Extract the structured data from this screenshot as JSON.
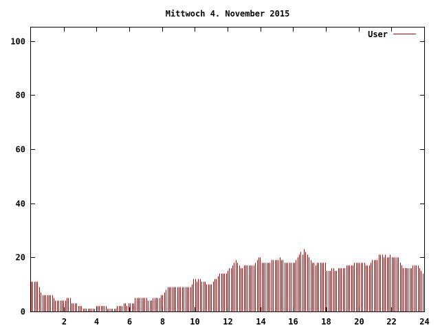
{
  "chart_data": {
    "type": "bar",
    "title": "Mittwoch 4. November 2015",
    "xlabel": "",
    "ylabel": "",
    "xlim": [
      0,
      24
    ],
    "ylim": [
      0,
      105
    ],
    "x_ticks": [
      2,
      4,
      6,
      8,
      10,
      12,
      14,
      16,
      18,
      20,
      22,
      24
    ],
    "y_ticks": [
      0,
      20,
      40,
      60,
      80,
      100
    ],
    "grid": false,
    "legend": "top-right",
    "series": [
      {
        "name": "User",
        "color": "#cc0000",
        "values": [
          11,
          11,
          11,
          11,
          11,
          9,
          7,
          6,
          6,
          6,
          6,
          6,
          6,
          6,
          5,
          4,
          4,
          4,
          4,
          4,
          4,
          4,
          5,
          5,
          5,
          3,
          3,
          3,
          3,
          2,
          2,
          2,
          1,
          1,
          1,
          1,
          1,
          1,
          1,
          1,
          2,
          2,
          2,
          2,
          2,
          2,
          2,
          1,
          1,
          1,
          1,
          1,
          1,
          2,
          2,
          2,
          2,
          3,
          3,
          2,
          3,
          3,
          3,
          3,
          5,
          5,
          5,
          5,
          5,
          5,
          5,
          5,
          4,
          4,
          4,
          5,
          5,
          5,
          5,
          5,
          6,
          6,
          7,
          8,
          9,
          9,
          9,
          9,
          9,
          9,
          9,
          9,
          9,
          9,
          9,
          9,
          9,
          9,
          9,
          10,
          12,
          12,
          11,
          12,
          12,
          11,
          11,
          11,
          10,
          10,
          10,
          10,
          11,
          12,
          12,
          13,
          14,
          14,
          14,
          14,
          14,
          15,
          16,
          16,
          17,
          18,
          19,
          18,
          17,
          16,
          16,
          17,
          17,
          17,
          17,
          17,
          17,
          17,
          18,
          19,
          20,
          20,
          18,
          18,
          18,
          18,
          18,
          18,
          19,
          19,
          19,
          19,
          19,
          20,
          19,
          19,
          18,
          18,
          18,
          18,
          18,
          18,
          18,
          19,
          20,
          21,
          22,
          21,
          23,
          22,
          21,
          20,
          19,
          18,
          18,
          17,
          18,
          18,
          18,
          18,
          18,
          18,
          15,
          15,
          15,
          16,
          16,
          15,
          15,
          16,
          16,
          16,
          16,
          16,
          17,
          17,
          17,
          17,
          17,
          18,
          18,
          18,
          18,
          18,
          18,
          18,
          17,
          17,
          17,
          18,
          19,
          19,
          19,
          19,
          21,
          21,
          21,
          20,
          21,
          20,
          20,
          21,
          20,
          20,
          20,
          20,
          20,
          18,
          17,
          16,
          16,
          16,
          16,
          16,
          16,
          17,
          17,
          17,
          17,
          16,
          15,
          14
        ]
      }
    ]
  }
}
